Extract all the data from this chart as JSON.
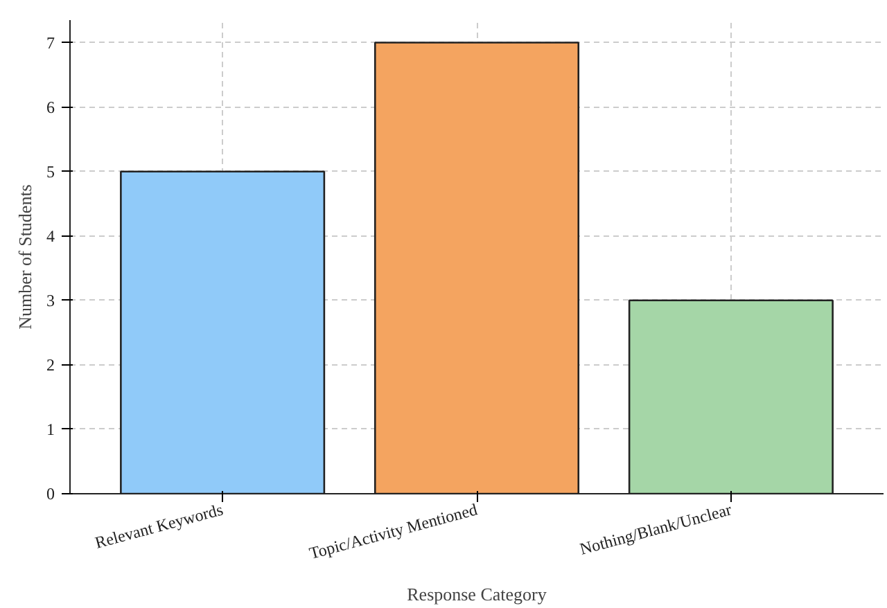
{
  "chart_data": {
    "type": "bar",
    "xlabel": "Response Category",
    "ylabel": "Number of Students",
    "categories": [
      "Relevant Keywords",
      "Topic/Activity Mentioned",
      "Nothing/Blank/Unclear"
    ],
    "values": [
      5,
      7,
      3
    ],
    "colors": [
      "#90caf9",
      "#f4a460",
      "#a5d6a7"
    ],
    "ylim": [
      0,
      7.35
    ],
    "yticks": [
      0,
      1,
      2,
      3,
      4,
      5,
      6,
      7
    ],
    "grid": true
  }
}
